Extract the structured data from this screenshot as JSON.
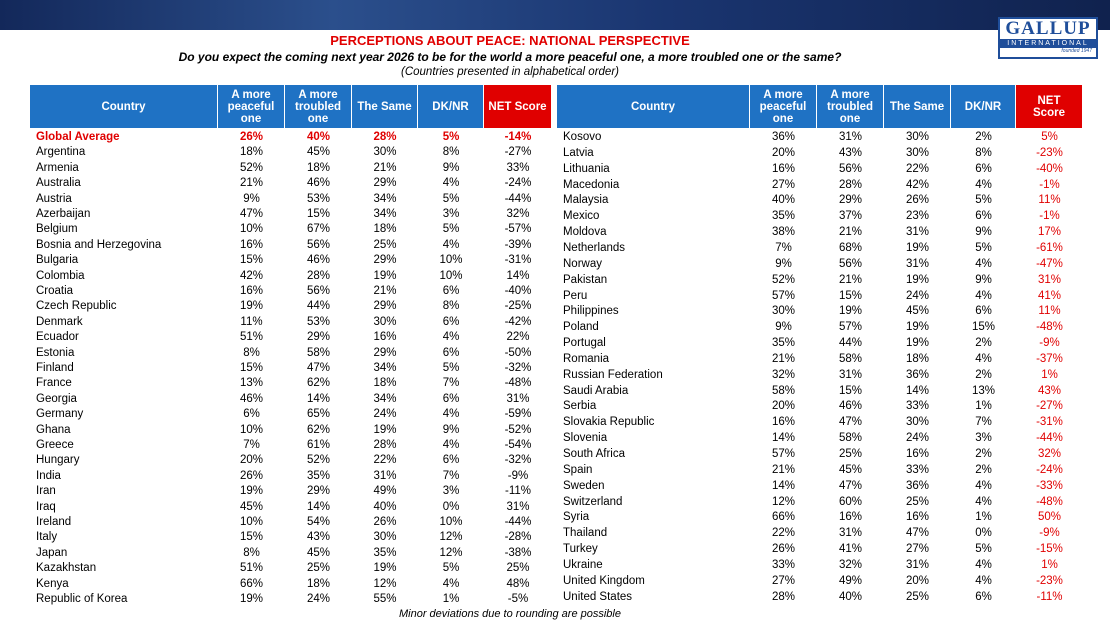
{
  "logo": {
    "name": "GALLUP",
    "tagline": "INTERNATIONAL",
    "founded": "founded 1947"
  },
  "header": {
    "title": "PERCEPTIONS ABOUT PEACE: NATIONAL PERSPECTIVE",
    "question": "Do you expect the coming next year 2026 to be for the world a more peaceful one, a more troubled one or the same?",
    "note": "(Countries presented in alphabetical order)"
  },
  "tables": [
    {
      "columns": [
        "Country",
        "A more peaceful one",
        "A more troubled one",
        "The Same",
        "DK/NR",
        "NET Score"
      ],
      "rows": [
        [
          "Global Average",
          "26%",
          "40%",
          "28%",
          "5%",
          "-14%"
        ],
        [
          "Argentina",
          "18%",
          "45%",
          "30%",
          "8%",
          "-27%"
        ],
        [
          "Armenia",
          "52%",
          "18%",
          "21%",
          "9%",
          "33%"
        ],
        [
          "Australia",
          "21%",
          "46%",
          "29%",
          "4%",
          "-24%"
        ],
        [
          "Austria",
          "9%",
          "53%",
          "34%",
          "5%",
          "-44%"
        ],
        [
          "Azerbaijan",
          "47%",
          "15%",
          "34%",
          "3%",
          "32%"
        ],
        [
          "Belgium",
          "10%",
          "67%",
          "18%",
          "5%",
          "-57%"
        ],
        [
          "Bosnia and Herzegovina",
          "16%",
          "56%",
          "25%",
          "4%",
          "-39%"
        ],
        [
          "Bulgaria",
          "15%",
          "46%",
          "29%",
          "10%",
          "-31%"
        ],
        [
          "Colombia",
          "42%",
          "28%",
          "19%",
          "10%",
          "14%"
        ],
        [
          "Croatia",
          "16%",
          "56%",
          "21%",
          "6%",
          "-40%"
        ],
        [
          "Czech Republic",
          "19%",
          "44%",
          "29%",
          "8%",
          "-25%"
        ],
        [
          "Denmark",
          "11%",
          "53%",
          "30%",
          "6%",
          "-42%"
        ],
        [
          "Ecuador",
          "51%",
          "29%",
          "16%",
          "4%",
          "22%"
        ],
        [
          "Estonia",
          "8%",
          "58%",
          "29%",
          "6%",
          "-50%"
        ],
        [
          "Finland",
          "15%",
          "47%",
          "34%",
          "5%",
          "-32%"
        ],
        [
          "France",
          "13%",
          "62%",
          "18%",
          "7%",
          "-48%"
        ],
        [
          "Georgia",
          "46%",
          "14%",
          "34%",
          "6%",
          "31%"
        ],
        [
          "Germany",
          "6%",
          "65%",
          "24%",
          "4%",
          "-59%"
        ],
        [
          "Ghana",
          "10%",
          "62%",
          "19%",
          "9%",
          "-52%"
        ],
        [
          "Greece",
          "7%",
          "61%",
          "28%",
          "4%",
          "-54%"
        ],
        [
          "Hungary",
          "20%",
          "52%",
          "22%",
          "6%",
          "-32%"
        ],
        [
          "India",
          "26%",
          "35%",
          "31%",
          "7%",
          "-9%"
        ],
        [
          "Iran",
          "19%",
          "29%",
          "49%",
          "3%",
          "-11%"
        ],
        [
          "Iraq",
          "45%",
          "14%",
          "40%",
          "0%",
          "31%"
        ],
        [
          "Ireland",
          "10%",
          "54%",
          "26%",
          "10%",
          "-44%"
        ],
        [
          "Italy",
          "15%",
          "43%",
          "30%",
          "12%",
          "-28%"
        ],
        [
          "Japan",
          "8%",
          "45%",
          "35%",
          "12%",
          "-38%"
        ],
        [
          "Kazakhstan",
          "51%",
          "25%",
          "19%",
          "5%",
          "25%"
        ],
        [
          "Kenya",
          "66%",
          "18%",
          "12%",
          "4%",
          "48%"
        ],
        [
          "Republic of Korea",
          "19%",
          "24%",
          "55%",
          "1%",
          "-5%"
        ]
      ]
    },
    {
      "columns": [
        "Country",
        "A more peaceful one",
        "A more troubled one",
        "The Same",
        "DK/NR",
        "NET Score"
      ],
      "rows": [
        [
          "Kosovo",
          "36%",
          "31%",
          "30%",
          "2%",
          "5%"
        ],
        [
          "Latvia",
          "20%",
          "43%",
          "30%",
          "8%",
          "-23%"
        ],
        [
          "Lithuania",
          "16%",
          "56%",
          "22%",
          "6%",
          "-40%"
        ],
        [
          "Macedonia",
          "27%",
          "28%",
          "42%",
          "4%",
          "-1%"
        ],
        [
          "Malaysia",
          "40%",
          "29%",
          "26%",
          "5%",
          "11%"
        ],
        [
          "Mexico",
          "35%",
          "37%",
          "23%",
          "6%",
          "-1%"
        ],
        [
          "Moldova",
          "38%",
          "21%",
          "31%",
          "9%",
          "17%"
        ],
        [
          "Netherlands",
          "7%",
          "68%",
          "19%",
          "5%",
          "-61%"
        ],
        [
          "Norway",
          "9%",
          "56%",
          "31%",
          "4%",
          "-47%"
        ],
        [
          "Pakistan",
          "52%",
          "21%",
          "19%",
          "9%",
          "31%"
        ],
        [
          "Peru",
          "57%",
          "15%",
          "24%",
          "4%",
          "41%"
        ],
        [
          "Philippines",
          "30%",
          "19%",
          "45%",
          "6%",
          "11%"
        ],
        [
          "Poland",
          "9%",
          "57%",
          "19%",
          "15%",
          "-48%"
        ],
        [
          "Portugal",
          "35%",
          "44%",
          "19%",
          "2%",
          "-9%"
        ],
        [
          "Romania",
          "21%",
          "58%",
          "18%",
          "4%",
          "-37%"
        ],
        [
          "Russian Federation",
          "32%",
          "31%",
          "36%",
          "2%",
          "1%"
        ],
        [
          "Saudi Arabia",
          "58%",
          "15%",
          "14%",
          "13%",
          "43%"
        ],
        [
          "Serbia",
          "20%",
          "46%",
          "33%",
          "1%",
          "-27%"
        ],
        [
          "Slovakia Republic",
          "16%",
          "47%",
          "30%",
          "7%",
          "-31%"
        ],
        [
          "Slovenia",
          "14%",
          "58%",
          "24%",
          "3%",
          "-44%"
        ],
        [
          "South Africa",
          "57%",
          "25%",
          "16%",
          "2%",
          "32%"
        ],
        [
          "Spain",
          "21%",
          "45%",
          "33%",
          "2%",
          "-24%"
        ],
        [
          "Sweden",
          "14%",
          "47%",
          "36%",
          "4%",
          "-33%"
        ],
        [
          "Switzerland",
          "12%",
          "60%",
          "25%",
          "4%",
          "-48%"
        ],
        [
          "Syria",
          "66%",
          "16%",
          "16%",
          "1%",
          "50%"
        ],
        [
          "Thailand",
          "22%",
          "31%",
          "47%",
          "0%",
          "-9%"
        ],
        [
          "Turkey",
          "26%",
          "41%",
          "27%",
          "5%",
          "-15%"
        ],
        [
          "Ukraine",
          "33%",
          "32%",
          "31%",
          "4%",
          "1%"
        ],
        [
          "United Kingdom",
          "27%",
          "49%",
          "20%",
          "4%",
          "-23%"
        ],
        [
          "United States",
          "28%",
          "40%",
          "25%",
          "6%",
          "-11%"
        ]
      ]
    }
  ],
  "footnote": "Minor deviations due to rounding are possible"
}
